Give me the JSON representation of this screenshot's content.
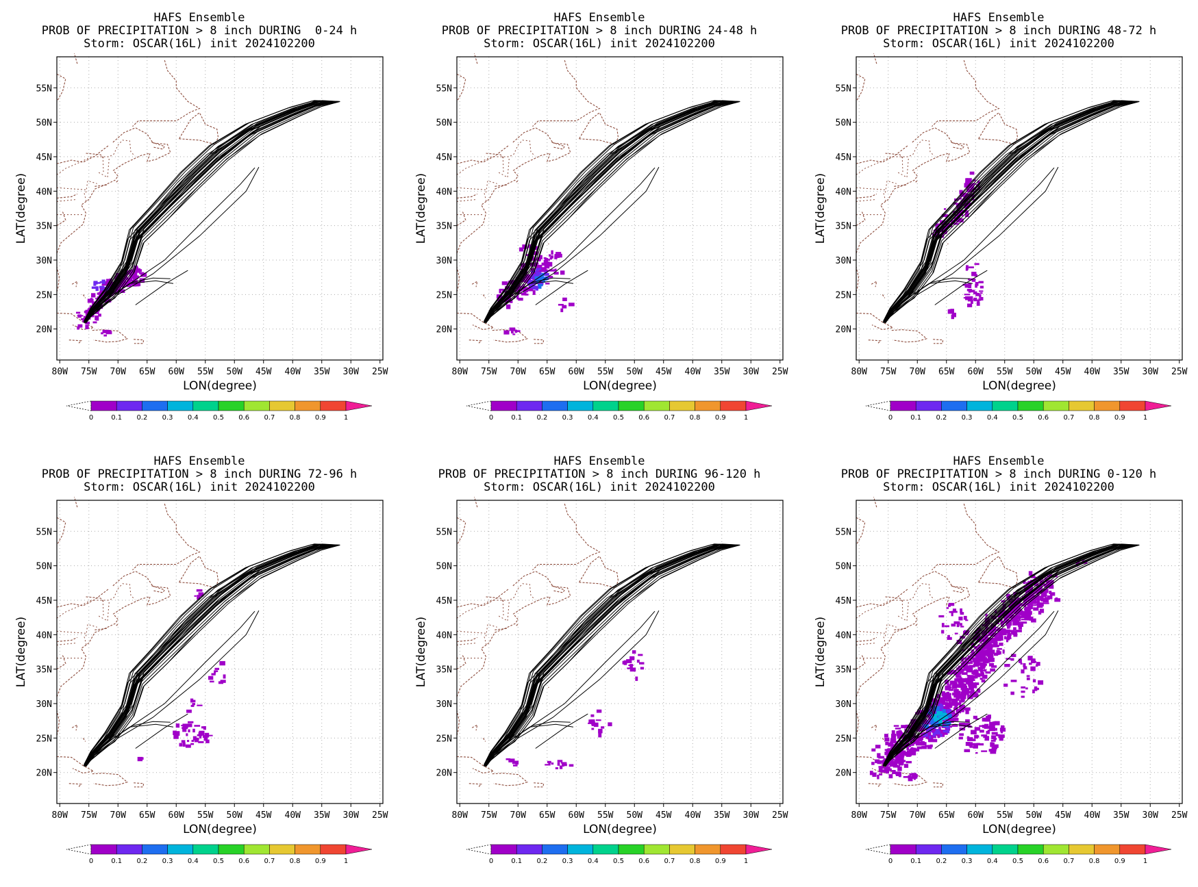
{
  "model": "HAFS Ensemble",
  "storm_line": "Storm: OSCAR(16L) init 2024102200",
  "x_axis_label": "LON(degree)",
  "y_axis_label": "LAT(degree)",
  "lon_ticks": [
    "80W",
    "75W",
    "70W",
    "65W",
    "60W",
    "55W",
    "50W",
    "45W",
    "40W",
    "35W",
    "30W",
    "25W"
  ],
  "lat_ticks": [
    "20N",
    "25N",
    "30N",
    "35N",
    "40N",
    "45N",
    "50N",
    "55N"
  ],
  "colorbar": {
    "ticks": [
      "0",
      "0.1",
      "0.2",
      "0.3",
      "0.4",
      "0.5",
      "0.6",
      "0.7",
      "0.8",
      "0.9",
      "1"
    ],
    "colors": [
      "#a000c8",
      "#6e28f0",
      "#1e6ef0",
      "#00b4dc",
      "#00d28c",
      "#28d228",
      "#a0e632",
      "#e6c832",
      "#f0962d",
      "#f04632",
      "#f01e96"
    ]
  },
  "panels": [
    {
      "title": "PROB OF PRECIPITATION > 8 inch DURING  0-24 h"
    },
    {
      "title": "PROB OF PRECIPITATION > 8 inch DURING 24-48 h"
    },
    {
      "title": "PROB OF PRECIPITATION > 8 inch DURING 48-72 h"
    },
    {
      "title": "PROB OF PRECIPITATION > 8 inch DURING 72-96 h"
    },
    {
      "title": "PROB OF PRECIPITATION > 8 inch DURING 96-120 h"
    },
    {
      "title": "PROB OF PRECIPITATION > 8 inch DURING 0-120 h"
    }
  ],
  "map_extent": {
    "lon": [
      -80.5,
      -24.5
    ],
    "lat": [
      15.5,
      59.5
    ]
  }
}
